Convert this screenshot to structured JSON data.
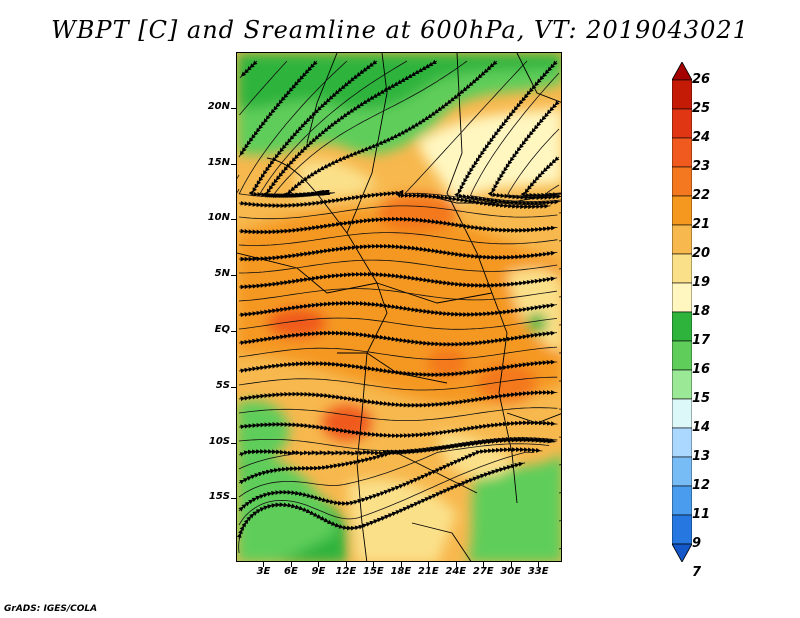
{
  "title": "WBPT [C] and Sreamline at 600hPa, VT: 2019043021",
  "credit": "GrADS: IGES/COLA",
  "map": {
    "variable": "WBPT",
    "units": "C",
    "level": "600hPa",
    "valid_time": "2019043021",
    "lat_ticks": [
      "20N",
      "15N",
      "10N",
      "5N",
      "EQ",
      "5S",
      "10S",
      "15S"
    ],
    "lon_ticks": [
      "3E",
      "6E",
      "9E",
      "12E",
      "15E",
      "18E",
      "21E",
      "24E",
      "27E",
      "30E",
      "33E"
    ],
    "lat_values": [
      20,
      15,
      10,
      5,
      0,
      -5,
      -10,
      -15
    ],
    "lon_values": [
      3,
      6,
      9,
      12,
      15,
      18,
      21,
      24,
      27,
      30,
      33
    ]
  },
  "colorbar": {
    "labels": [
      "26",
      "25",
      "24",
      "23",
      "22",
      "21",
      "20",
      "19",
      "18",
      "17",
      "16",
      "15",
      "14",
      "13",
      "12",
      "11",
      "9",
      "7"
    ],
    "colors": [
      "#a50000",
      "#c41b07",
      "#e13614",
      "#f05a1e",
      "#f4781f",
      "#f59820",
      "#f7b84e",
      "#fbe08a",
      "#fff6c0",
      "#2eb43c",
      "#5ecd5a",
      "#9be896",
      "#dcf8f8",
      "#aad8ff",
      "#78bcf6",
      "#4a9cee",
      "#2678e0",
      "#1457c8"
    ],
    "palette_names": [
      "dark-red",
      "red",
      "orange-red",
      "orange",
      "orange-2",
      "amber",
      "light-amber",
      "pale-yellow",
      "cream",
      "green",
      "mid-green",
      "light-green",
      "pale-cyan",
      "light-blue",
      "sky-blue",
      "blue",
      "deep-blue",
      "navy-blue"
    ]
  }
}
